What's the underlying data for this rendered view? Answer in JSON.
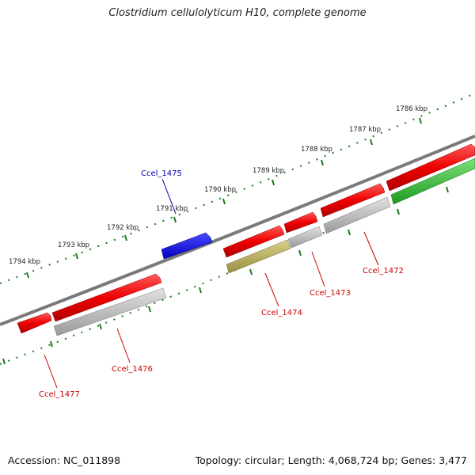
{
  "title": "Clostridium cellulolyticum H10, complete genome",
  "footer": {
    "accession": "Accession: NC_011898",
    "summary": "Topology: circular; Length: 4,068,724 bp; Genes: 3,477"
  },
  "colors": {
    "backbone": "#7a7a7a",
    "tick": "#1a7a1a",
    "label_red": "#cc0000",
    "label_blue": "#0000aa"
  },
  "kbp_labels": [
    "1786 kbp",
    "1787 kbp",
    "1788 kbp",
    "1789 kbp",
    "1790 kbp",
    "1791 kbp",
    "1792 kbp",
    "1793 kbp",
    "1794 kbp"
  ],
  "gene_labels": [
    {
      "name": "Ccel_1472",
      "color": "#cc0000"
    },
    {
      "name": "Ccel_1473",
      "color": "#cc0000"
    },
    {
      "name": "Ccel_1474",
      "color": "#cc0000"
    },
    {
      "name": "Ccel_1475",
      "color": "#0000aa"
    },
    {
      "name": "Ccel_1476",
      "color": "#cc0000"
    },
    {
      "name": "Ccel_1477",
      "color": "#cc0000"
    }
  ]
}
